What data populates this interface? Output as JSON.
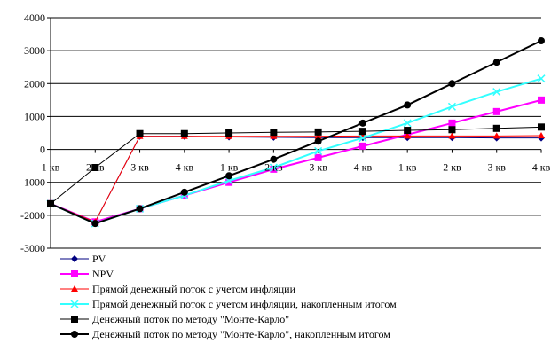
{
  "chart_data": {
    "type": "line",
    "title": "",
    "xlabel": "",
    "ylabel": "",
    "categories": [
      "1 кв",
      "2 кв",
      "3 кв",
      "4 кв",
      "1 кв",
      "2 кв",
      "3 кв",
      "4 кв",
      "1 кв",
      "2 кв",
      "3 кв",
      "4 кв"
    ],
    "ylim": [
      -3000,
      4000
    ],
    "y_ticks": [
      -3000,
      -2000,
      -1000,
      0,
      1000,
      2000,
      3000,
      4000
    ],
    "grid": "horizontal",
    "legend_position": "bottom",
    "series": [
      {
        "name": "PV",
        "color": "#000080",
        "marker": "diamond",
        "values": [
          -1650,
          -2200,
          400,
          400,
          380,
          370,
          360,
          360,
          360,
          360,
          350,
          350
        ]
      },
      {
        "name": "NPV",
        "color": "#ff00ff",
        "marker": "square",
        "values": [
          -1650,
          -2200,
          -1800,
          -1400,
          -1000,
          -600,
          -250,
          100,
          450,
          800,
          1150,
          1500
        ]
      },
      {
        "name": "Прямой денежный поток с учетом инфляции",
        "color": "#ff0000",
        "marker": "triangle",
        "values": [
          -1650,
          -2200,
          400,
          400,
          400,
          400,
          400,
          410,
          410,
          410,
          410,
          420
        ]
      },
      {
        "name": "Прямой денежный поток с учетом инфляции, накопленным итогом",
        "color": "#33ffff",
        "marker": "x",
        "values": [
          -1650,
          -2250,
          -1800,
          -1400,
          -950,
          -550,
          -50,
          350,
          800,
          1300,
          1750,
          2150
        ]
      },
      {
        "name": "Денежный поток по методу \"Монте-Карло\"",
        "color": "#000000",
        "marker": "square",
        "values": [
          -1650,
          -550,
          480,
          480,
          500,
          520,
          530,
          550,
          580,
          600,
          640,
          680
        ]
      },
      {
        "name": "Денежный поток по методу \"Монте-Карло\", накопленным итогом",
        "color": "#000000",
        "marker": "circle",
        "values": [
          -1650,
          -2250,
          -1800,
          -1300,
          -800,
          -300,
          250,
          800,
          1350,
          2000,
          2650,
          3300
        ]
      }
    ]
  }
}
